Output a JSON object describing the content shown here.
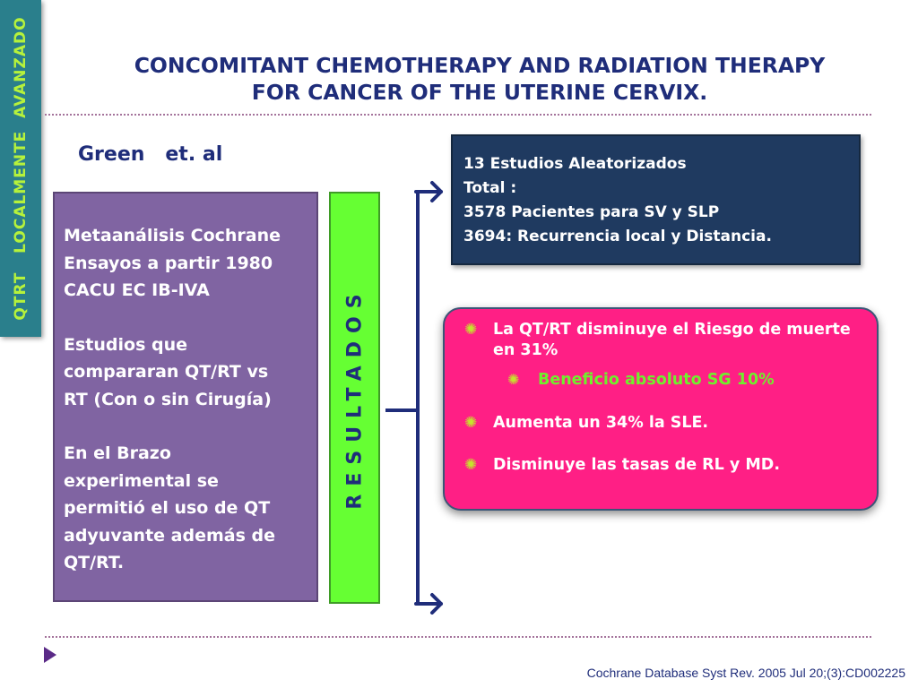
{
  "side_tab": {
    "label": "QTRT   LOCALMENTE  AVANZADO"
  },
  "title": {
    "line1": "CONCOMITANT CHEMOTHERAPY AND RADIATION THERAPY",
    "line2": "FOR CANCER OF THE UTERINE CERVIX."
  },
  "author": "Green   et. al",
  "methods": {
    "paragraphs": [
      [
        "Metaanálisis Cochrane",
        "Ensayos a partir 1980",
        "CACU EC IB-IVA"
      ],
      [
        "Estudios que",
        "compararan QT/RT vs",
        "RT (Con o sin Cirugía)"
      ],
      [
        "En el Brazo",
        "experimental se",
        "permitió el uso de QT",
        "adyuvante  además de",
        "QT/RT."
      ]
    ]
  },
  "results_label": "RESULTADOS",
  "study_box": {
    "lines": [
      "13 Estudios Aleatorizados",
      "Total :",
      "3578 Pacientes para SV y SLP",
      "3694: Recurrencia local y Distancia."
    ]
  },
  "findings": {
    "bullet1": "La QT/RT disminuye el Riesgo de muerte en 31%",
    "sub_bullet": "Beneficio absoluto SG 10%",
    "bullet2": "Aumenta un 34% la  SLE.",
    "bullet3": "Disminuye las tasas de RL y  MD."
  },
  "footer": "Cochrane Database Syst Rev. 2005 Jul 20;(3):CD002225",
  "colors": {
    "title": "#1f2d7a",
    "side_tab": "#2a7f8c",
    "side_tab_text": "#b6f23b",
    "methods_box": "#8064a2",
    "results_box": "#66ff33",
    "study_box": "#1f3a60",
    "findings_box": "#ff1f85",
    "highlight": "#6ff02d"
  },
  "icons": {
    "bullet": "sunburst-bullet-icon",
    "nav": "play-arrow-icon"
  }
}
